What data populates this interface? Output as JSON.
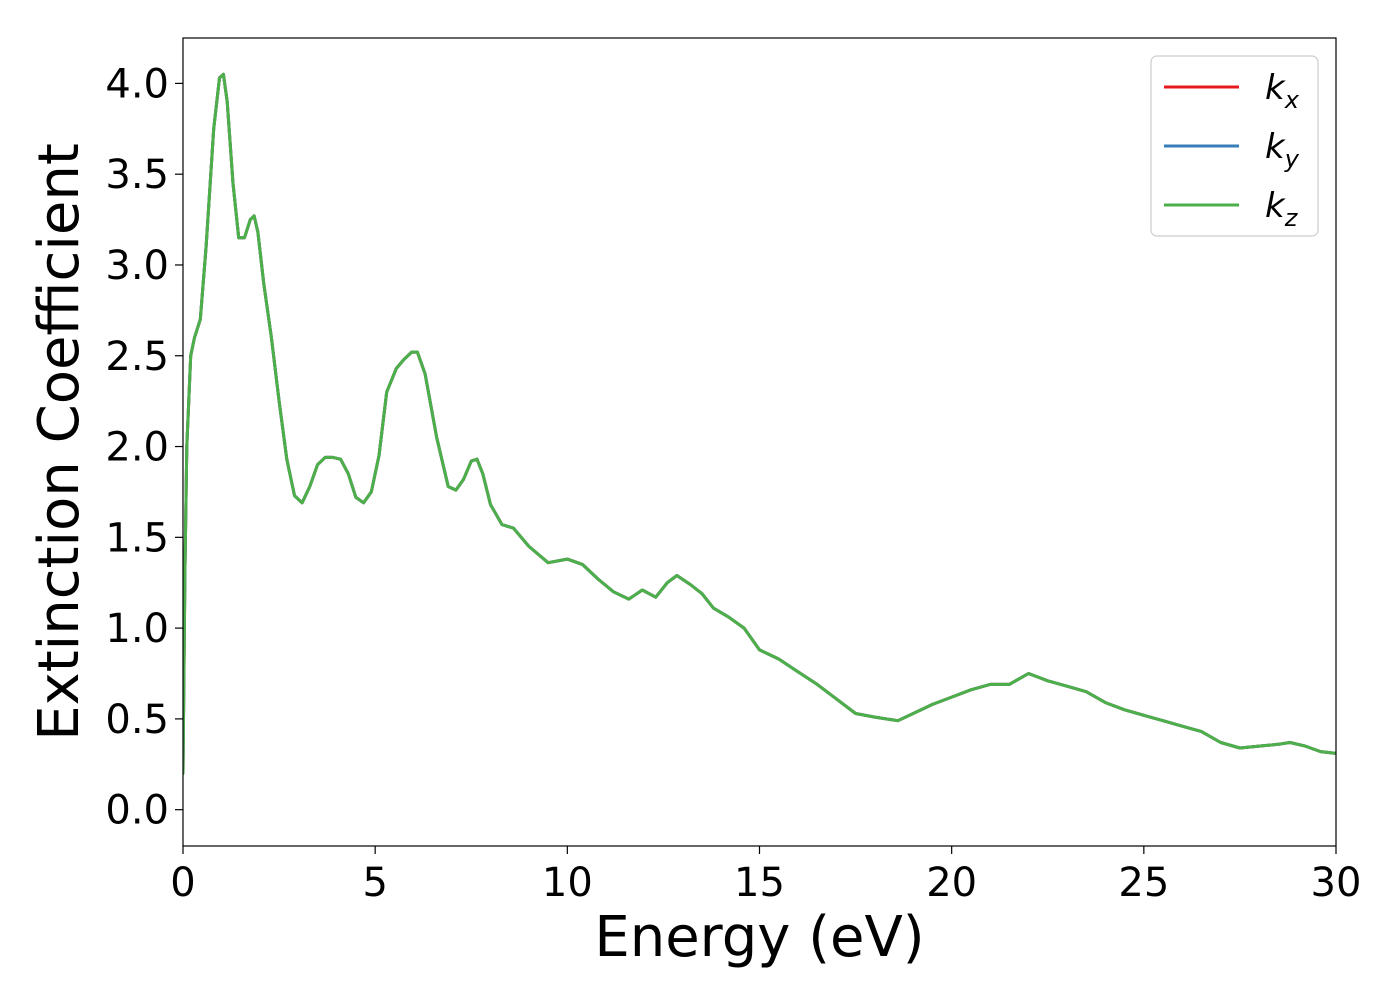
{
  "chart_data": {
    "type": "line",
    "title": "",
    "xlabel": "Energy (eV)",
    "ylabel": "Extinction Coefficient",
    "xlim": [
      0,
      30
    ],
    "ylim": [
      -0.2,
      4.25
    ],
    "xticks": [
      0,
      5,
      10,
      15,
      20,
      25,
      30
    ],
    "xtick_labels": [
      "0",
      "5",
      "10",
      "15",
      "20",
      "25",
      "30"
    ],
    "yticks": [
      0.0,
      0.5,
      1.0,
      1.5,
      2.0,
      2.5,
      3.0,
      3.5,
      4.0
    ],
    "ytick_labels": [
      "0.0",
      "0.5",
      "1.0",
      "1.5",
      "2.0",
      "2.5",
      "3.0",
      "3.5",
      "4.0"
    ],
    "grid": false,
    "legend_position": "top-right",
    "series": [
      {
        "name": "k_x",
        "label_base": "k",
        "label_sub": "x",
        "color": "#e41a1c",
        "x": [
          0,
          0.05,
          0.1,
          0.2,
          0.3,
          0.45,
          0.6,
          0.8,
          0.95,
          1.05,
          1.15,
          1.3,
          1.45,
          1.6,
          1.75,
          1.85,
          1.95,
          2.1,
          2.3,
          2.5,
          2.7,
          2.9,
          3.1,
          3.3,
          3.5,
          3.7,
          3.9,
          4.1,
          4.3,
          4.5,
          4.7,
          4.9,
          5.1,
          5.3,
          5.55,
          5.75,
          5.95,
          6.1,
          6.3,
          6.6,
          6.9,
          7.1,
          7.3,
          7.5,
          7.65,
          7.8,
          8.0,
          8.3,
          8.6,
          9.0,
          9.5,
          10.0,
          10.4,
          10.8,
          11.2,
          11.6,
          11.95,
          12.3,
          12.6,
          12.85,
          13.2,
          13.5,
          13.8,
          14.2,
          14.6,
          15.0,
          15.5,
          16.0,
          16.5,
          17.0,
          17.5,
          18.0,
          18.6,
          19.0,
          19.5,
          20.0,
          20.5,
          21.0,
          21.5,
          22.0,
          22.5,
          23.0,
          23.5,
          24.0,
          24.5,
          25.0,
          25.5,
          26.0,
          26.5,
          27.0,
          27.5,
          28.0,
          28.5,
          28.8,
          29.2,
          29.6,
          30.0
        ],
        "y": [
          0.2,
          1.3,
          2.0,
          2.5,
          2.6,
          2.7,
          3.1,
          3.75,
          4.03,
          4.05,
          3.9,
          3.45,
          3.15,
          3.15,
          3.25,
          3.27,
          3.18,
          2.9,
          2.6,
          2.25,
          1.93,
          1.73,
          1.69,
          1.78,
          1.9,
          1.94,
          1.94,
          1.93,
          1.85,
          1.72,
          1.69,
          1.75,
          1.95,
          2.3,
          2.43,
          2.48,
          2.52,
          2.52,
          2.4,
          2.05,
          1.78,
          1.76,
          1.82,
          1.92,
          1.93,
          1.85,
          1.68,
          1.57,
          1.55,
          1.45,
          1.36,
          1.38,
          1.35,
          1.27,
          1.2,
          1.16,
          1.21,
          1.17,
          1.25,
          1.29,
          1.24,
          1.19,
          1.11,
          1.06,
          1.0,
          0.88,
          0.83,
          0.76,
          0.69,
          0.61,
          0.53,
          0.51,
          0.49,
          0.53,
          0.58,
          0.62,
          0.66,
          0.69,
          0.69,
          0.75,
          0.71,
          0.68,
          0.65,
          0.59,
          0.55,
          0.52,
          0.49,
          0.46,
          0.43,
          0.37,
          0.34,
          0.35,
          0.36,
          0.37,
          0.35,
          0.32,
          0.31
        ]
      },
      {
        "name": "k_y",
        "label_base": "k",
        "label_sub": "y",
        "color": "#377eb8",
        "x": [
          0,
          0.05,
          0.1,
          0.2,
          0.3,
          0.45,
          0.6,
          0.8,
          0.95,
          1.05,
          1.15,
          1.3,
          1.45,
          1.6,
          1.75,
          1.85,
          1.95,
          2.1,
          2.3,
          2.5,
          2.7,
          2.9,
          3.1,
          3.3,
          3.5,
          3.7,
          3.9,
          4.1,
          4.3,
          4.5,
          4.7,
          4.9,
          5.1,
          5.3,
          5.55,
          5.75,
          5.95,
          6.1,
          6.3,
          6.6,
          6.9,
          7.1,
          7.3,
          7.5,
          7.65,
          7.8,
          8.0,
          8.3,
          8.6,
          9.0,
          9.5,
          10.0,
          10.4,
          10.8,
          11.2,
          11.6,
          11.95,
          12.3,
          12.6,
          12.85,
          13.2,
          13.5,
          13.8,
          14.2,
          14.6,
          15.0,
          15.5,
          16.0,
          16.5,
          17.0,
          17.5,
          18.0,
          18.6,
          19.0,
          19.5,
          20.0,
          20.5,
          21.0,
          21.5,
          22.0,
          22.5,
          23.0,
          23.5,
          24.0,
          24.5,
          25.0,
          25.5,
          26.0,
          26.5,
          27.0,
          27.5,
          28.0,
          28.5,
          28.8,
          29.2,
          29.6,
          30.0
        ],
        "y": [
          0.2,
          1.3,
          2.0,
          2.5,
          2.6,
          2.7,
          3.1,
          3.75,
          4.03,
          4.05,
          3.9,
          3.45,
          3.15,
          3.15,
          3.25,
          3.27,
          3.18,
          2.9,
          2.6,
          2.25,
          1.93,
          1.73,
          1.69,
          1.78,
          1.9,
          1.94,
          1.94,
          1.93,
          1.85,
          1.72,
          1.69,
          1.75,
          1.95,
          2.3,
          2.43,
          2.48,
          2.52,
          2.52,
          2.4,
          2.05,
          1.78,
          1.76,
          1.82,
          1.92,
          1.93,
          1.85,
          1.68,
          1.57,
          1.55,
          1.45,
          1.36,
          1.38,
          1.35,
          1.27,
          1.2,
          1.16,
          1.21,
          1.17,
          1.25,
          1.29,
          1.24,
          1.19,
          1.11,
          1.06,
          1.0,
          0.88,
          0.83,
          0.76,
          0.69,
          0.61,
          0.53,
          0.51,
          0.49,
          0.53,
          0.58,
          0.62,
          0.66,
          0.69,
          0.69,
          0.75,
          0.71,
          0.68,
          0.65,
          0.59,
          0.55,
          0.52,
          0.49,
          0.46,
          0.43,
          0.37,
          0.34,
          0.35,
          0.36,
          0.37,
          0.35,
          0.32,
          0.31
        ]
      },
      {
        "name": "k_z",
        "label_base": "k",
        "label_sub": "z",
        "color": "#4daf4a",
        "x": [
          0,
          0.05,
          0.1,
          0.2,
          0.3,
          0.45,
          0.6,
          0.8,
          0.95,
          1.05,
          1.15,
          1.3,
          1.45,
          1.6,
          1.75,
          1.85,
          1.95,
          2.1,
          2.3,
          2.5,
          2.7,
          2.9,
          3.1,
          3.3,
          3.5,
          3.7,
          3.9,
          4.1,
          4.3,
          4.5,
          4.7,
          4.9,
          5.1,
          5.3,
          5.55,
          5.75,
          5.95,
          6.1,
          6.3,
          6.6,
          6.9,
          7.1,
          7.3,
          7.5,
          7.65,
          7.8,
          8.0,
          8.3,
          8.6,
          9.0,
          9.5,
          10.0,
          10.4,
          10.8,
          11.2,
          11.6,
          11.95,
          12.3,
          12.6,
          12.85,
          13.2,
          13.5,
          13.8,
          14.2,
          14.6,
          15.0,
          15.5,
          16.0,
          16.5,
          17.0,
          17.5,
          18.0,
          18.6,
          19.0,
          19.5,
          20.0,
          20.5,
          21.0,
          21.5,
          22.0,
          22.5,
          23.0,
          23.5,
          24.0,
          24.5,
          25.0,
          25.5,
          26.0,
          26.5,
          27.0,
          27.5,
          28.0,
          28.5,
          28.8,
          29.2,
          29.6,
          30.0
        ],
        "y": [
          0.2,
          1.3,
          2.0,
          2.5,
          2.6,
          2.7,
          3.1,
          3.75,
          4.03,
          4.05,
          3.9,
          3.45,
          3.15,
          3.15,
          3.25,
          3.27,
          3.18,
          2.9,
          2.6,
          2.25,
          1.93,
          1.73,
          1.69,
          1.78,
          1.9,
          1.94,
          1.94,
          1.93,
          1.85,
          1.72,
          1.69,
          1.75,
          1.95,
          2.3,
          2.43,
          2.48,
          2.52,
          2.52,
          2.4,
          2.05,
          1.78,
          1.76,
          1.82,
          1.92,
          1.93,
          1.85,
          1.68,
          1.57,
          1.55,
          1.45,
          1.36,
          1.38,
          1.35,
          1.27,
          1.2,
          1.16,
          1.21,
          1.17,
          1.25,
          1.29,
          1.24,
          1.19,
          1.11,
          1.06,
          1.0,
          0.88,
          0.83,
          0.76,
          0.69,
          0.61,
          0.53,
          0.51,
          0.49,
          0.53,
          0.58,
          0.62,
          0.66,
          0.69,
          0.69,
          0.75,
          0.71,
          0.68,
          0.65,
          0.59,
          0.55,
          0.52,
          0.49,
          0.46,
          0.43,
          0.37,
          0.34,
          0.35,
          0.36,
          0.37,
          0.35,
          0.32,
          0.31
        ]
      }
    ]
  }
}
